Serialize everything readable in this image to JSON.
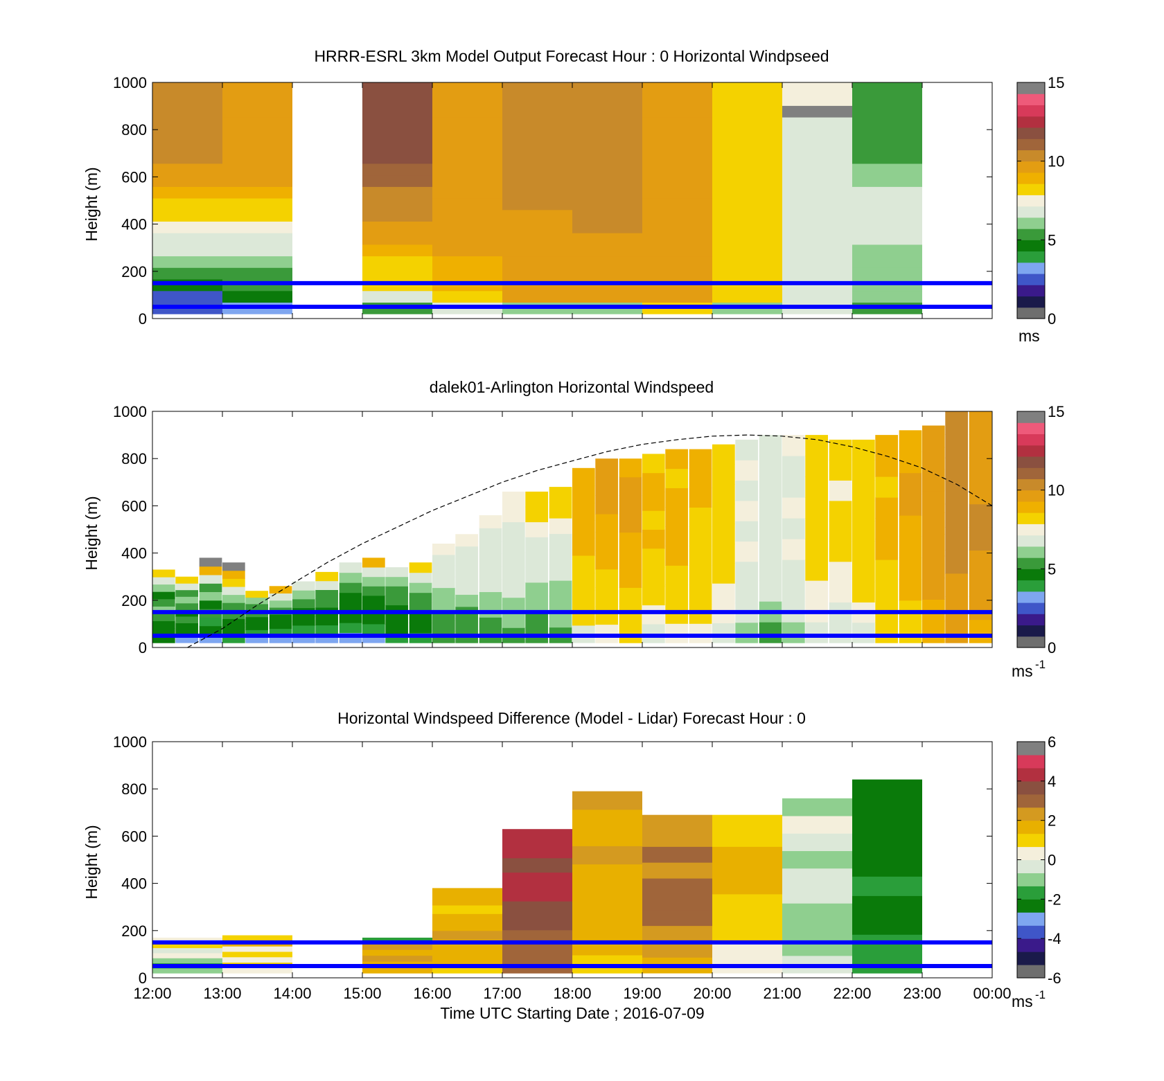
{
  "figure": {
    "xlabel": "Time UTC  Starting Date ; 2016-07-09"
  },
  "chart_data": [
    {
      "type": "heatmap",
      "title": "HRRR-ESRL 3km Model Output   Forecast Hour : 0 Horizontal Windpseed",
      "ylabel": "Height (m)",
      "ylim": [
        0,
        1000
      ],
      "yticks": [
        "0",
        "200",
        "400",
        "600",
        "800",
        "1000"
      ],
      "colorbar": {
        "range": [
          0,
          15
        ],
        "ticks": [
          "0",
          "5",
          "10",
          "15"
        ],
        "unit": "ms",
        "unit_sup": ""
      },
      "hline_heights": [
        150,
        50
      ],
      "columns": [
        {
          "t": 0,
          "top": 1000,
          "v": [
            2,
            2,
            4,
            5,
            6,
            6.5,
            7,
            7.5,
            8,
            8.5,
            9,
            9.5,
            10,
            10.5,
            10.5,
            11,
            11,
            11,
            11,
            11
          ]
        },
        {
          "t": 1,
          "top": 1000,
          "v": [
            3,
            4,
            5,
            5.5,
            6,
            6.5,
            7,
            7.5,
            8,
            8.5,
            9,
            9.5,
            9.5,
            10,
            10,
            10,
            10,
            10,
            10,
            10
          ]
        },
        {
          "t": 3,
          "top": 1000,
          "v": [
            5,
            7,
            8,
            8.5,
            8.5,
            9,
            9.5,
            10,
            10.5,
            11,
            11,
            11.5,
            11.5,
            12,
            12,
            12,
            12,
            12,
            12,
            12
          ]
        },
        {
          "t": 4,
          "top": 1000,
          "v": [
            7,
            8.5,
            9,
            9,
            9,
            9.5,
            9.5,
            10,
            10,
            10,
            10,
            10,
            10,
            10,
            10,
            10,
            10,
            10,
            10,
            10
          ]
        },
        {
          "t": 5,
          "top": 1000,
          "v": [
            6,
            9.5,
            9.5,
            9.5,
            9.5,
            10,
            10,
            10,
            10,
            10.5,
            10.5,
            10.5,
            10.5,
            10.5,
            10.5,
            11,
            11,
            11,
            11,
            11
          ]
        },
        {
          "t": 6,
          "top": 1000,
          "v": [
            6,
            9.5,
            9.5,
            9.5,
            10,
            10,
            10,
            10.5,
            10.5,
            10.5,
            10.5,
            10.5,
            10.5,
            10.5,
            10.5,
            10.5,
            10.5,
            10.5,
            10.5,
            10.5
          ]
        },
        {
          "t": 7,
          "top": 1000,
          "v": [
            8.5,
            9.5,
            9.5,
            9.5,
            9.5,
            10,
            10,
            10,
            10,
            10,
            10,
            10,
            10,
            10,
            10,
            10,
            10,
            10,
            10,
            10
          ]
        },
        {
          "t": 8,
          "top": 1000,
          "v": [
            6,
            8.5,
            8.5,
            8.5,
            8.5,
            8.5,
            8.5,
            8.5,
            8.5,
            8.5,
            8.5,
            8.5,
            8.5,
            8.5,
            8.5,
            8.5,
            8.5,
            8.5,
            8.5,
            8.5
          ]
        },
        {
          "t": 9,
          "top": 1000,
          "v": [
            7,
            7,
            7,
            7,
            7,
            7,
            7,
            7,
            7,
            7,
            7,
            7,
            7,
            7,
            7,
            7,
            7,
            16,
            7.5,
            7.5
          ]
        },
        {
          "t": 10,
          "top": 1000,
          "v": [
            5.5,
            6,
            6,
            6,
            6,
            6,
            6.5,
            6.5,
            6.5,
            6.5,
            6.5,
            6,
            6,
            5.5,
            5.5,
            5.5,
            5,
            5,
            5,
            5
          ]
        }
      ]
    },
    {
      "type": "heatmap",
      "title": "dalek01-Arlington  Horizontal Windspeed",
      "ylabel": "Height (m)",
      "ylim": [
        0,
        1000
      ],
      "yticks": [
        "0",
        "200",
        "400",
        "600",
        "800",
        "1000"
      ],
      "colorbar": {
        "range": [
          0,
          15
        ],
        "ticks": [
          "0",
          "5",
          "10",
          "15"
        ],
        "unit": "ms",
        "unit_sup": "-1"
      },
      "hline_heights": [
        150,
        50
      ],
      "boundary_layer_curve": {
        "style": "dashed",
        "points": [
          [
            0.5,
            0
          ],
          [
            1.0,
            80
          ],
          [
            1.5,
            180
          ],
          [
            2.0,
            270
          ],
          [
            2.5,
            360
          ],
          [
            3.0,
            440
          ],
          [
            3.5,
            510
          ],
          [
            4.0,
            580
          ],
          [
            4.5,
            640
          ],
          [
            5.0,
            700
          ],
          [
            5.5,
            750
          ],
          [
            6.0,
            790
          ],
          [
            6.5,
            830
          ],
          [
            7.0,
            860
          ],
          [
            7.5,
            880
          ],
          [
            8.0,
            895
          ],
          [
            8.5,
            900
          ],
          [
            9.0,
            895
          ],
          [
            9.5,
            880
          ],
          [
            10.0,
            850
          ],
          [
            10.5,
            810
          ],
          [
            11.0,
            760
          ],
          [
            11.5,
            690
          ],
          [
            12.0,
            600
          ]
        ]
      },
      "columns": [
        {
          "t": 0.0,
          "top": 330,
          "v": [
            4,
            4.5,
            4,
            5,
            6,
            5,
            4,
            6,
            7,
            8
          ]
        },
        {
          "t": 0.33,
          "top": 300,
          "v": [
            3,
            4,
            4,
            5,
            4,
            5,
            6,
            5,
            7,
            8
          ]
        },
        {
          "t": 0.67,
          "top": 380,
          "v": [
            3,
            4,
            3.5,
            5,
            4.5,
            6,
            5,
            7,
            9,
            16
          ]
        },
        {
          "t": 1.0,
          "top": 360,
          "v": [
            3.5,
            4,
            4,
            5,
            5,
            6,
            7,
            8,
            9,
            16
          ]
        },
        {
          "t": 1.33,
          "top": 240,
          "v": [
            3,
            3.5,
            4,
            4.5,
            5,
            5.5,
            6,
            8
          ]
        },
        {
          "t": 1.67,
          "top": 260,
          "v": [
            3,
            3.5,
            4,
            4.5,
            5,
            6,
            7,
            9
          ]
        },
        {
          "t": 2.0,
          "top": 280,
          "v": [
            3,
            3.5,
            4,
            4,
            5,
            6,
            7
          ]
        },
        {
          "t": 2.33,
          "top": 320,
          "v": [
            3,
            3.5,
            4,
            4,
            5,
            5.5,
            6.5,
            8
          ]
        },
        {
          "t": 2.67,
          "top": 360,
          "v": [
            3,
            3.5,
            4,
            4,
            4.5,
            5,
            6,
            7
          ]
        },
        {
          "t": 3.0,
          "top": 380,
          "v": [
            3,
            3.5,
            4,
            4,
            4.5,
            5,
            6,
            7,
            9
          ]
        },
        {
          "t": 3.33,
          "top": 340,
          "v": [
            3.5,
            4,
            4,
            4.5,
            5,
            5.5,
            6,
            7
          ]
        },
        {
          "t": 3.67,
          "top": 360,
          "v": [
            3.5,
            4,
            4.5,
            5,
            5.5,
            6,
            7,
            8
          ]
        },
        {
          "t": 4.0,
          "top": 440,
          "v": [
            5,
            5,
            5.5,
            6,
            6,
            6.5,
            7,
            7,
            7.5
          ]
        },
        {
          "t": 4.33,
          "top": 480,
          "v": [
            5,
            5.5,
            5.5,
            6,
            6.5,
            6.5,
            7,
            7,
            7.5
          ]
        },
        {
          "t": 4.67,
          "top": 560,
          "v": [
            5.5,
            5.5,
            6,
            6,
            6.5,
            6.5,
            7,
            7,
            7,
            7.5
          ]
        },
        {
          "t": 5.0,
          "top": 660,
          "v": [
            5.5,
            6,
            6,
            6.5,
            6.5,
            7,
            7,
            7,
            7.5,
            7.5
          ]
        },
        {
          "t": 5.33,
          "top": 660,
          "v": [
            5,
            5.5,
            6,
            6,
            6.5,
            7,
            7,
            7.5,
            8,
            8
          ]
        },
        {
          "t": 5.67,
          "top": 680,
          "v": [
            5.5,
            6,
            6,
            6,
            6.5,
            7,
            7,
            7.5,
            8,
            8.5
          ]
        },
        {
          "t": 6.0,
          "top": 760,
          "v": [
            7,
            8,
            8,
            8.5,
            8.5,
            9,
            9,
            9,
            9,
            9
          ]
        },
        {
          "t": 6.33,
          "top": 800,
          "v": [
            7.5,
            8,
            8.5,
            8.5,
            9,
            9,
            9,
            9.5,
            9.5,
            9.5
          ]
        },
        {
          "t": 6.67,
          "top": 800,
          "v": [
            8,
            8.5,
            8.5,
            9,
            9,
            9,
            9.5,
            9.5,
            9.5,
            9
          ]
        },
        {
          "t": 7.0,
          "top": 820,
          "v": [
            7,
            7.5,
            8,
            8.5,
            8.5,
            9,
            8.5,
            9,
            9,
            8.5
          ]
        },
        {
          "t": 7.33,
          "top": 840,
          "v": [
            7.5,
            8,
            8.5,
            8.5,
            9,
            9,
            9,
            9,
            8.5,
            9
          ]
        },
        {
          "t": 7.67,
          "top": 840,
          "v": [
            7.5,
            8,
            8,
            8,
            8.5,
            8.5,
            8.5,
            9,
            9,
            9
          ]
        },
        {
          "t": 8.0,
          "top": 860,
          "v": [
            7,
            7.5,
            7.5,
            8,
            8,
            8.5,
            8,
            8.5,
            8,
            8
          ]
        },
        {
          "t": 8.33,
          "top": 880,
          "v": [
            6,
            6.5,
            7,
            7,
            7.5,
            7,
            7.5,
            7,
            7.5,
            7
          ]
        },
        {
          "t": 8.67,
          "top": 900,
          "v": [
            5.5,
            6,
            6.5,
            6.5,
            7,
            7,
            6.5,
            7,
            6.5,
            7
          ]
        },
        {
          "t": 9.0,
          "top": 900,
          "v": [
            6,
            6.5,
            7,
            7,
            7.5,
            7,
            7.5,
            7,
            7,
            7.5
          ]
        },
        {
          "t": 9.33,
          "top": 900,
          "v": [
            7,
            7.5,
            7.5,
            8,
            8,
            8,
            8.5,
            8,
            8.5,
            8
          ]
        },
        {
          "t": 9.67,
          "top": 880,
          "v": [
            6.5,
            7,
            7.5,
            7.5,
            8,
            8,
            8,
            7.5,
            8,
            8
          ]
        },
        {
          "t": 10.0,
          "top": 880,
          "v": [
            7,
            7.5,
            8,
            8,
            8,
            8.5,
            8.5,
            8,
            8.5,
            8
          ]
        },
        {
          "t": 10.33,
          "top": 900,
          "v": [
            8,
            8.5,
            8.5,
            8.5,
            9,
            9,
            9,
            8.5,
            9,
            9
          ]
        },
        {
          "t": 10.67,
          "top": 920,
          "v": [
            8.5,
            8.5,
            9,
            9,
            9,
            9,
            9.5,
            9.5,
            9,
            9
          ]
        },
        {
          "t": 11.0,
          "top": 940,
          "v": [
            9,
            9,
            9.5,
            9.5,
            9.5,
            10,
            10,
            10,
            9.5,
            9.5
          ]
        },
        {
          "t": 11.33,
          "top": 1000,
          "v": [
            9.5,
            10,
            10,
            10.5,
            10.5,
            11,
            11,
            11,
            10.5,
            10.5
          ]
        },
        {
          "t": 11.67,
          "top": 1000,
          "v": [
            9,
            9.5,
            10,
            10,
            10.5,
            10.5,
            10,
            10,
            10,
            10
          ]
        }
      ]
    },
    {
      "type": "heatmap",
      "title": "Horizontal Windspeed Difference (Model - Lidar) Forecast Hour : 0",
      "ylabel": "Height (m)",
      "ylim": [
        0,
        1000
      ],
      "yticks": [
        "0",
        "200",
        "400",
        "600",
        "800",
        "1000"
      ],
      "colorbar": {
        "range": [
          -6,
          6
        ],
        "ticks": [
          "-6",
          "-4",
          "-2",
          "0",
          "2",
          "4",
          "6"
        ],
        "unit": "ms",
        "unit_sup": "-1"
      },
      "hline_heights": [
        150,
        50
      ],
      "columns": [
        {
          "t": 0,
          "top": 170,
          "v": [
            -1.5,
            -2,
            -1,
            0.5,
            -0.5,
            1,
            0.5
          ]
        },
        {
          "t": 1,
          "top": 180,
          "v": [
            0.5,
            1,
            0.5,
            1,
            0.5,
            1.5,
            1
          ]
        },
        {
          "t": 3,
          "top": 170,
          "v": [
            1.5,
            2,
            2.5,
            2,
            2.5,
            -2
          ]
        },
        {
          "t": 4,
          "top": 380,
          "v": [
            1,
            1.5,
            1.5,
            2,
            2.5,
            2,
            1.5,
            1,
            2,
            1.5
          ]
        },
        {
          "t": 5,
          "top": 630,
          "v": [
            3,
            3.5,
            3.5,
            4,
            4,
            4.5,
            4.5,
            4,
            5,
            5
          ]
        },
        {
          "t": 6,
          "top": 790,
          "v": [
            1,
            1.5,
            1.5,
            2,
            2,
            2,
            2.5,
            2,
            2,
            2.5
          ]
        },
        {
          "t": 7,
          "top": 690,
          "v": [
            2,
            2.5,
            2.5,
            3,
            3,
            3,
            2.5,
            3,
            2.5,
            2.5
          ]
        },
        {
          "t": 8,
          "top": 690,
          "v": [
            0.5,
            0.5,
            1,
            1,
            1,
            1.5,
            1.5,
            1.5,
            1,
            1
          ]
        },
        {
          "t": 9,
          "top": 760,
          "v": [
            -0.5,
            -1,
            -1,
            -1,
            -0.5,
            -0.5,
            -1,
            -0.5,
            0,
            -1.5
          ]
        },
        {
          "t": 10,
          "top": 840,
          "v": [
            -2,
            -2,
            -2.5,
            -2.5,
            -2,
            -2.5,
            -3,
            -3,
            -3,
            -3
          ]
        }
      ]
    }
  ],
  "x_ticks": [
    "12:00",
    "13:00",
    "14:00",
    "15:00",
    "16:00",
    "17:00",
    "18:00",
    "19:00",
    "20:00",
    "21:00",
    "22:00",
    "23:00",
    "00:00"
  ],
  "colors": {
    "hline": "#0000ff",
    "speed_scale": [
      "#6e6e6e",
      "#1a1a4a",
      "#3a1a8a",
      "#3f56c8",
      "#7ea6f0",
      "#2a9e3a",
      "#0a7a0a",
      "#3a9a3a",
      "#8fcf8f",
      "#dce8d8",
      "#f4efdc",
      "#f4d200",
      "#efb000",
      "#e39d12",
      "#c88a2a",
      "#a0653a",
      "#8a5040",
      "#b23040",
      "#d83a5a",
      "#ee5a7a",
      "#808080"
    ],
    "diff_scale": [
      "#6e6e6e",
      "#1a1a4a",
      "#3a1a8a",
      "#3f56c8",
      "#7ea6f0",
      "#0a7a0a",
      "#2a9e3a",
      "#8fcf8f",
      "#dce8d8",
      "#f4efdc",
      "#f4d200",
      "#e8b000",
      "#d49a20",
      "#a0653a",
      "#8a5040",
      "#b23040",
      "#d83a5a",
      "#808080"
    ]
  }
}
